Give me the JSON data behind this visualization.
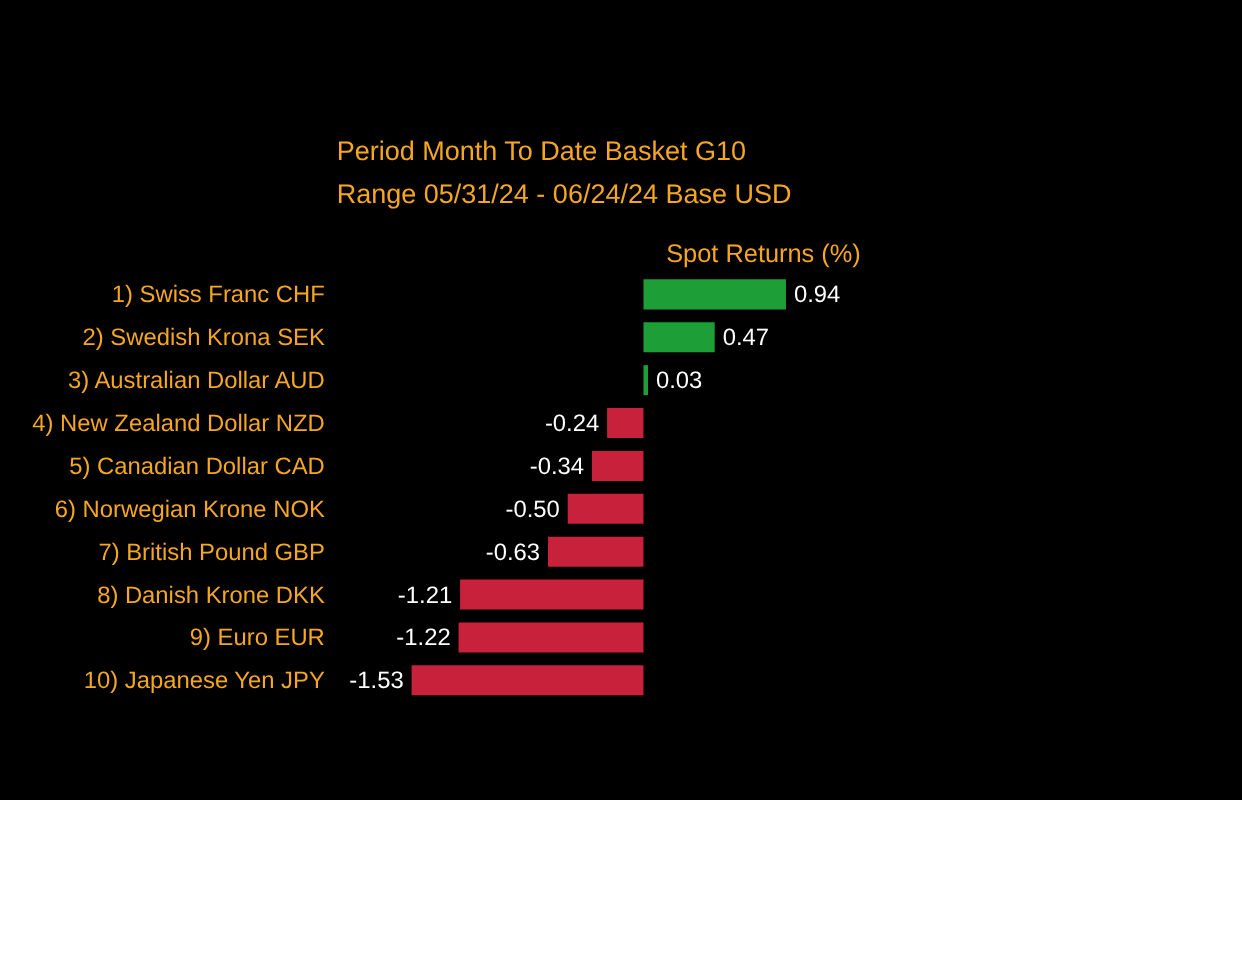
{
  "chart_data": {
    "type": "bar",
    "orientation": "horizontal",
    "title": "Spot Returns (%)",
    "annotations": [
      "Period  Month To Date     Basket  G10",
      "Range  05/31/24 - 06/24/24     Base  USD"
    ],
    "categories": [
      "1) Swiss Franc  CHF",
      "2) Swedish Krona  SEK",
      "3) Australian Dollar  AUD",
      "4) New Zealand Dollar  NZD",
      "5) Canadian Dollar  CAD",
      "6) Norwegian Krone  NOK",
      "7) British Pound  GBP",
      "8) Danish Krone  DKK",
      "9) Euro  EUR",
      "10) Japanese Yen  JPY"
    ],
    "values": [
      0.94,
      0.47,
      0.03,
      -0.24,
      -0.34,
      -0.5,
      -0.63,
      -1.21,
      -1.22,
      -1.53
    ],
    "colors": [
      "#1e9e36",
      "#1e9e36",
      "#1e9e36",
      "#c8213b",
      "#c8213b",
      "#c8213b",
      "#c8213b",
      "#c8213b",
      "#c8213b",
      "#c8213b"
    ],
    "value_labels": [
      "0.94",
      "0.47",
      "0.03",
      "-0.24",
      "-0.34",
      "-0.50",
      "-0.63",
      "-1.21",
      "-1.22",
      "-1.53"
    ]
  }
}
